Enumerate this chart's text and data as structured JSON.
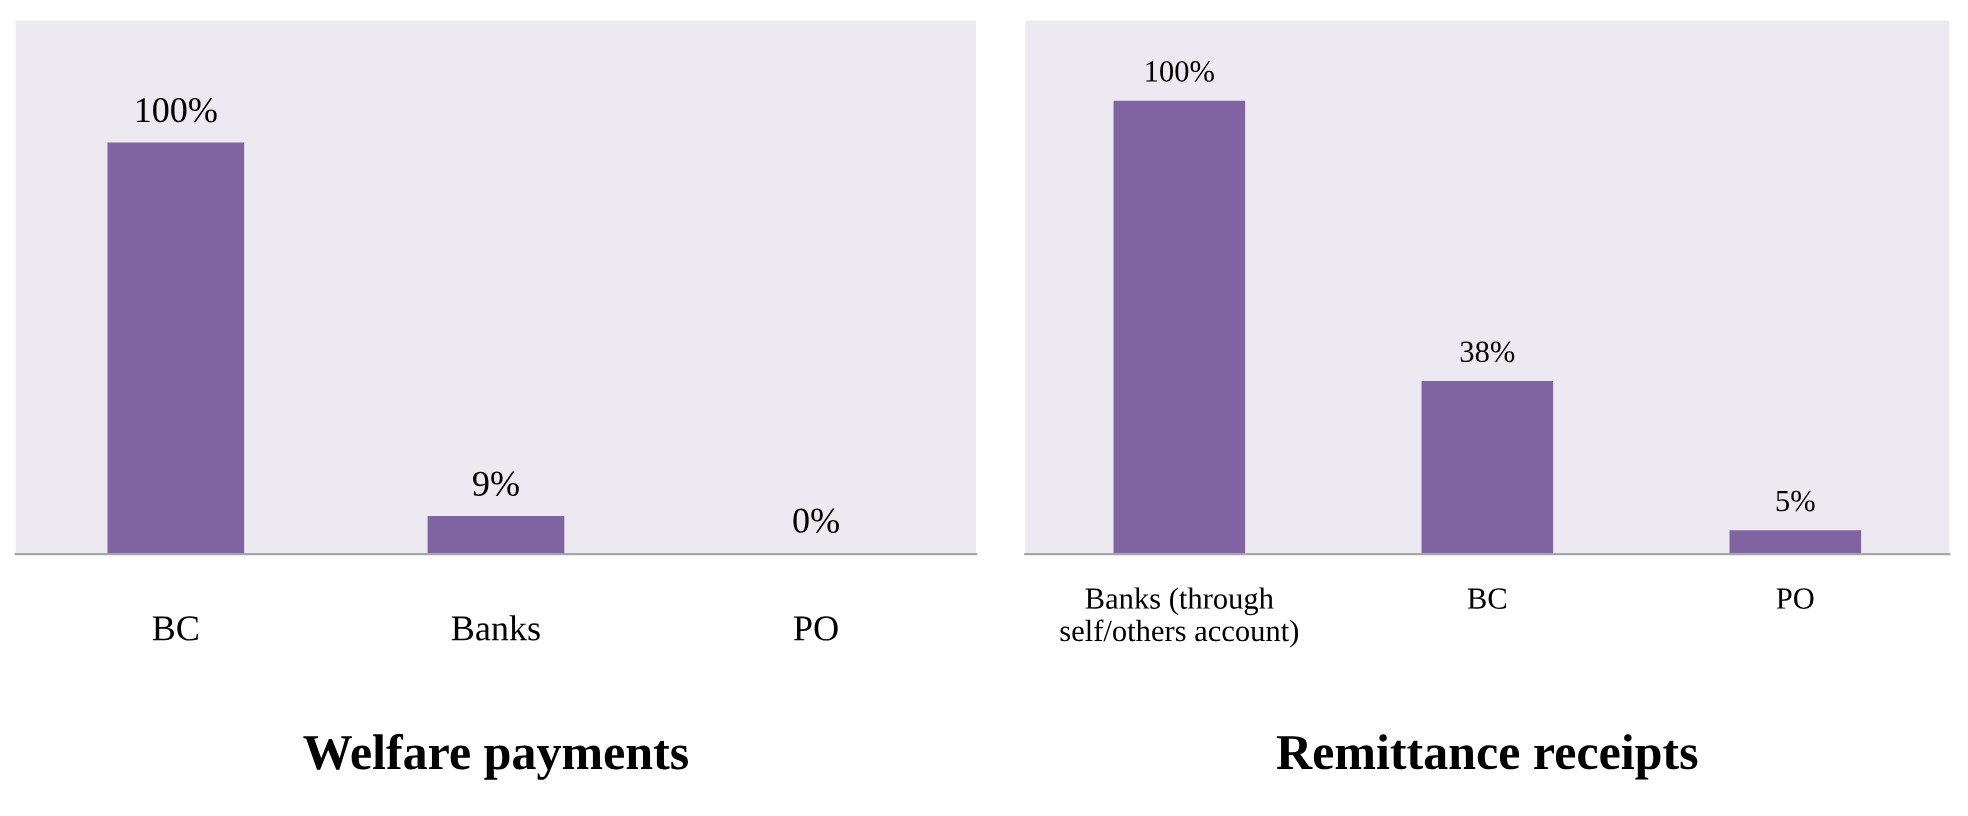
{
  "chart_data": [
    {
      "type": "bar",
      "title": "Welfare payments",
      "categories": [
        "BC",
        "Banks",
        "PO"
      ],
      "values": [
        100,
        9,
        0
      ],
      "value_labels": [
        "100%",
        "9%",
        "0%"
      ],
      "color": "#8064a2",
      "ylim": [
        0,
        130
      ],
      "tick_labels": "x",
      "grid": false,
      "legend": false
    },
    {
      "type": "bar",
      "title": "Remittance receipts",
      "categories": [
        "Banks (through\nself/others account)",
        "BC",
        "PO"
      ],
      "values": [
        100,
        38,
        5
      ],
      "value_labels": [
        "100%",
        "38%",
        "5%"
      ],
      "color": "#8064a2",
      "ylim": [
        0,
        118
      ],
      "tick_labels": "x",
      "grid": false,
      "legend": false
    }
  ]
}
